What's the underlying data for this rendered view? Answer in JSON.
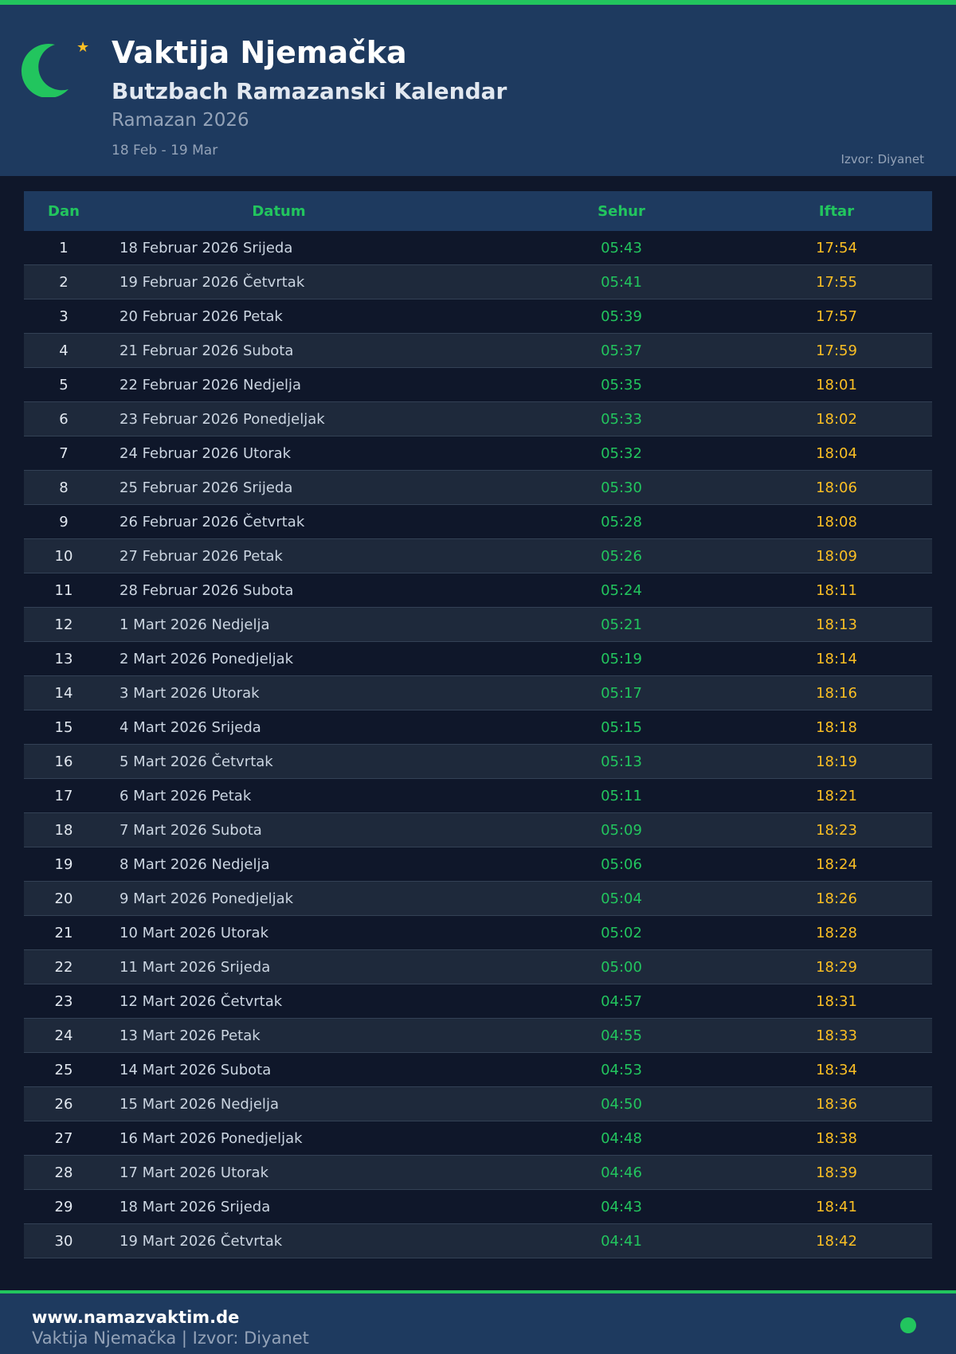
{
  "header": {
    "title": "Vaktija Njemačka",
    "subtitle": "Butzbach Ramazanski Kalendar",
    "season": "Ramazan 2026",
    "range": "18 Feb - 19 Mar",
    "source": "Izvor: Diyanet",
    "icons": [
      "crescent-moon-icon",
      "star-icon"
    ]
  },
  "colors": {
    "accent": "#22c55e",
    "iftar": "#fbbf24",
    "header_bg": "#1e3a5f",
    "page_bg": "#0f172a"
  },
  "table": {
    "columns": [
      "Dan",
      "Datum",
      "Sehur",
      "Iftar"
    ],
    "rows": [
      [
        "1",
        "18 Februar 2026 Srijeda",
        "05:43",
        "17:54"
      ],
      [
        "2",
        "19 Februar 2026 Četvrtak",
        "05:41",
        "17:55"
      ],
      [
        "3",
        "20 Februar 2026 Petak",
        "05:39",
        "17:57"
      ],
      [
        "4",
        "21 Februar 2026 Subota",
        "05:37",
        "17:59"
      ],
      [
        "5",
        "22 Februar 2026 Nedjelja",
        "05:35",
        "18:01"
      ],
      [
        "6",
        "23 Februar 2026 Ponedjeljak",
        "05:33",
        "18:02"
      ],
      [
        "7",
        "24 Februar 2026 Utorak",
        "05:32",
        "18:04"
      ],
      [
        "8",
        "25 Februar 2026 Srijeda",
        "05:30",
        "18:06"
      ],
      [
        "9",
        "26 Februar 2026 Četvrtak",
        "05:28",
        "18:08"
      ],
      [
        "10",
        "27 Februar 2026 Petak",
        "05:26",
        "18:09"
      ],
      [
        "11",
        "28 Februar 2026 Subota",
        "05:24",
        "18:11"
      ],
      [
        "12",
        "1 Mart 2026 Nedjelja",
        "05:21",
        "18:13"
      ],
      [
        "13",
        "2 Mart 2026 Ponedjeljak",
        "05:19",
        "18:14"
      ],
      [
        "14",
        "3 Mart 2026 Utorak",
        "05:17",
        "18:16"
      ],
      [
        "15",
        "4 Mart 2026 Srijeda",
        "05:15",
        "18:18"
      ],
      [
        "16",
        "5 Mart 2026 Četvrtak",
        "05:13",
        "18:19"
      ],
      [
        "17",
        "6 Mart 2026 Petak",
        "05:11",
        "18:21"
      ],
      [
        "18",
        "7 Mart 2026 Subota",
        "05:09",
        "18:23"
      ],
      [
        "19",
        "8 Mart 2026 Nedjelja",
        "05:06",
        "18:24"
      ],
      [
        "20",
        "9 Mart 2026 Ponedjeljak",
        "05:04",
        "18:26"
      ],
      [
        "21",
        "10 Mart 2026 Utorak",
        "05:02",
        "18:28"
      ],
      [
        "22",
        "11 Mart 2026 Srijeda",
        "05:00",
        "18:29"
      ],
      [
        "23",
        "12 Mart 2026 Četvrtak",
        "04:57",
        "18:31"
      ],
      [
        "24",
        "13 Mart 2026 Petak",
        "04:55",
        "18:33"
      ],
      [
        "25",
        "14 Mart 2026 Subota",
        "04:53",
        "18:34"
      ],
      [
        "26",
        "15 Mart 2026 Nedjelja",
        "04:50",
        "18:36"
      ],
      [
        "27",
        "16 Mart 2026 Ponedjeljak",
        "04:48",
        "18:38"
      ],
      [
        "28",
        "17 Mart 2026 Utorak",
        "04:46",
        "18:39"
      ],
      [
        "29",
        "18 Mart 2026 Srijeda",
        "04:43",
        "18:41"
      ],
      [
        "30",
        "19 Mart 2026 Četvrtak",
        "04:41",
        "18:42"
      ]
    ]
  },
  "footer": {
    "url": "www.namazvaktim.de",
    "subtitle": "Vaktija Njemačka | Izvor: Diyanet",
    "icon": "green-dot-icon"
  }
}
